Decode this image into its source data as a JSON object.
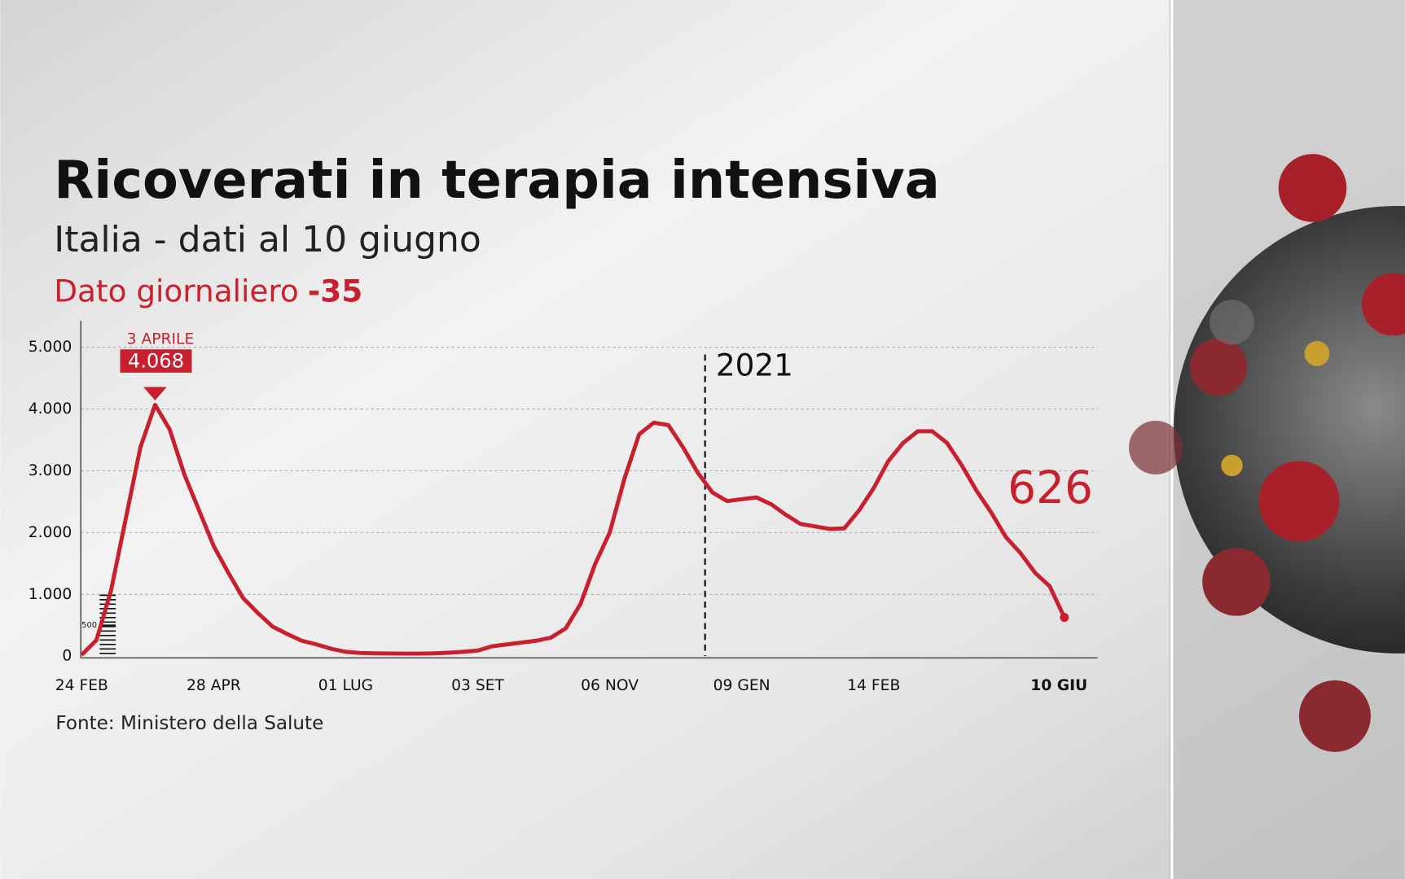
{
  "chart_data": {
    "type": "line",
    "title": "Ricoverati in terapia intensiva",
    "subtitle": "Italia - dati al 10 giugno",
    "daily_label": "Dato giornaliero",
    "daily_change": -35,
    "source": "Fonte: Ministero della Salute",
    "year_marker": "2021",
    "annotations": [
      "3 APRILE"
    ],
    "color": "#c8202f",
    "categories": [
      "24 FEB",
      null,
      null,
      null,
      null,
      null,
      null,
      null,
      null,
      "28 APR",
      null,
      null,
      null,
      null,
      null,
      null,
      null,
      null,
      "01 LUG",
      null,
      null,
      null,
      null,
      null,
      null,
      null,
      null,
      "03 SET",
      null,
      null,
      null,
      null,
      null,
      null,
      null,
      null,
      "06 NOV",
      null,
      null,
      null,
      null,
      null,
      null,
      null,
      null,
      "09 GEN",
      null,
      null,
      null,
      null,
      null,
      null,
      null,
      null,
      "14 FEB",
      null,
      null,
      null,
      null,
      null,
      null,
      null,
      null,
      null,
      null,
      null,
      null,
      "10 GIU"
    ],
    "values": [
      20,
      260,
      1060,
      2220,
      3380,
      4068,
      3670,
      2940,
      2360,
      1780,
      1350,
      940,
      700,
      480,
      360,
      250,
      190,
      120,
      70,
      50,
      45,
      42,
      40,
      40,
      45,
      55,
      70,
      90,
      160,
      190,
      220,
      250,
      300,
      450,
      840,
      1490,
      2000,
      2870,
      3590,
      3780,
      3740,
      3380,
      2970,
      2650,
      2510,
      2540,
      2570,
      2460,
      2290,
      2140,
      2100,
      2060,
      2070,
      2360,
      2720,
      3160,
      3450,
      3640,
      3640,
      3450,
      3090,
      2680,
      2330,
      1930,
      1670,
      1350,
      1130,
      626
    ],
    "value_labels": [
      null,
      null,
      null,
      null,
      null,
      "4.068",
      null,
      null,
      null,
      null,
      null,
      null,
      null,
      null,
      null,
      null,
      null,
      null,
      null,
      null,
      null,
      null,
      null,
      null,
      null,
      null,
      null,
      null,
      null,
      null,
      null,
      null,
      null,
      null,
      null,
      null,
      null,
      null,
      null,
      null,
      null,
      null,
      null,
      null,
      null,
      null,
      null,
      null,
      null,
      null,
      null,
      null,
      null,
      null,
      null,
      null,
      null,
      null,
      null,
      null,
      null,
      null,
      null,
      null,
      null,
      null,
      null,
      null
    ],
    "ylim": [
      0,
      5430
    ],
    "yticks": [
      0,
      {
        "value": 1000,
        "label": "1.000"
      },
      {
        "value": 2000,
        "label": "2.000"
      },
      {
        "value": 3000,
        "label": "3.000"
      },
      {
        "value": 4000,
        "label": "4.000"
      },
      {
        "value": 5000,
        "label": "5.000"
      }
    ],
    "yticks_minor": [
      500
    ],
    "grid": true
  }
}
